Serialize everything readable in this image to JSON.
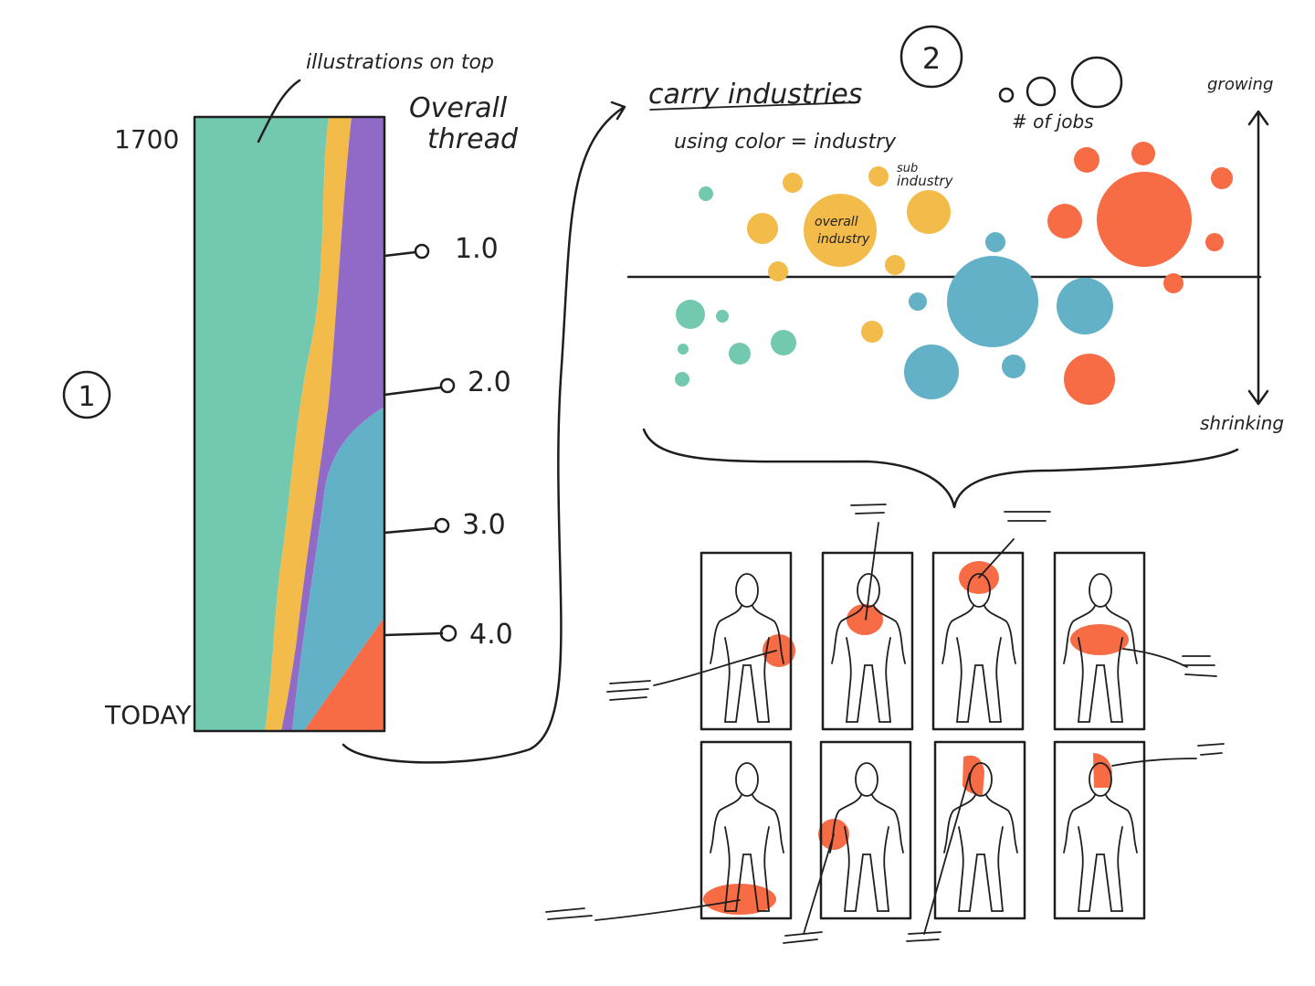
{
  "section_1": {
    "number": "1",
    "note": "illustrations on top",
    "title": [
      "Overall",
      "thread"
    ],
    "start_label": "1700",
    "end_label": "TODAY",
    "milestones": [
      "1.0",
      "2.0",
      "3.0",
      "4.0"
    ]
  },
  "section_2": {
    "number": "2",
    "title": "carry industries",
    "subtitle": "using color = industry",
    "size_legend": "# of jobs",
    "axis_top": "growing",
    "axis_bottom": "shrinking",
    "sub_industry": [
      "sub",
      "industry"
    ],
    "overall_industry": [
      "overall",
      "industry"
    ]
  }
}
